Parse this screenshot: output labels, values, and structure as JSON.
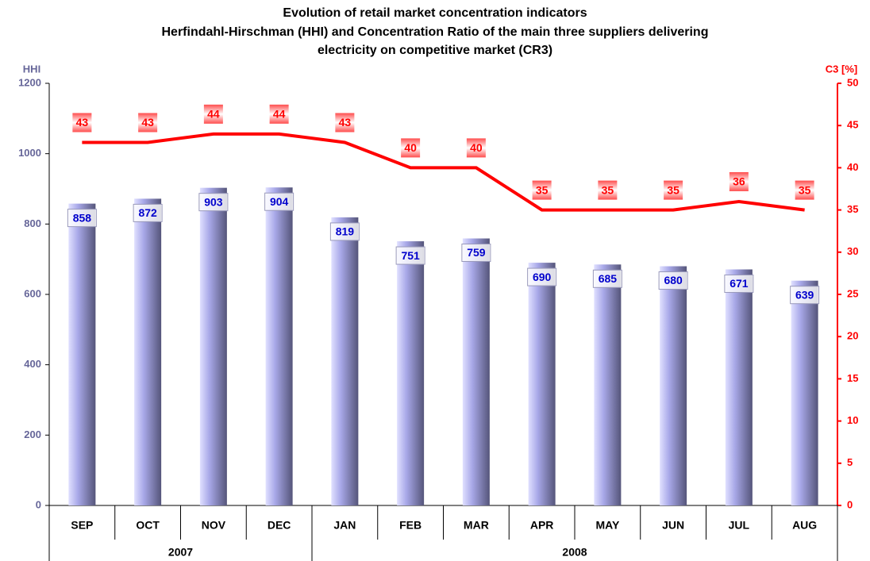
{
  "chart_data": {
    "type": "bar",
    "title": [
      "Evolution of retail market concentration indicators",
      "Herfindahl-Hirschman (HHI) and Concentration Ratio of the main three suppliers delivering",
      "electricity on competitive market (CR3)"
    ],
    "y_label": "HHI",
    "y2_label": "C3 [%]",
    "categories": [
      "SEP",
      "OCT",
      "NOV",
      "DEC",
      "JAN",
      "FEB",
      "MAR",
      "APR",
      "MAY",
      "JUN",
      "JUL",
      "AUG"
    ],
    "groups": [
      {
        "label": "2007",
        "count": 4
      },
      {
        "label": "2008",
        "count": 8
      }
    ],
    "series": [
      {
        "name": "HHI",
        "type": "bar",
        "color": "#a8a8e8",
        "label_color": "#0000cc",
        "values": [
          858,
          872,
          903,
          904,
          819,
          751,
          759,
          690,
          685,
          680,
          671,
          639
        ]
      },
      {
        "name": "CR3",
        "type": "line",
        "axis": "y2",
        "color": "#ff0000",
        "label_color": "#ff0000",
        "values": [
          43,
          43,
          44,
          44,
          43,
          40,
          40,
          35,
          35,
          35,
          36,
          35
        ]
      }
    ],
    "ylim": [
      0,
      1200
    ],
    "yticks": [
      0,
      200,
      400,
      600,
      800,
      1000,
      1200
    ],
    "y2lim": [
      0,
      50
    ],
    "y2ticks": [
      0,
      5,
      10,
      15,
      20,
      25,
      30,
      35,
      40,
      45,
      50
    ],
    "y_color": "#666699",
    "y2_color": "#ff0000"
  }
}
